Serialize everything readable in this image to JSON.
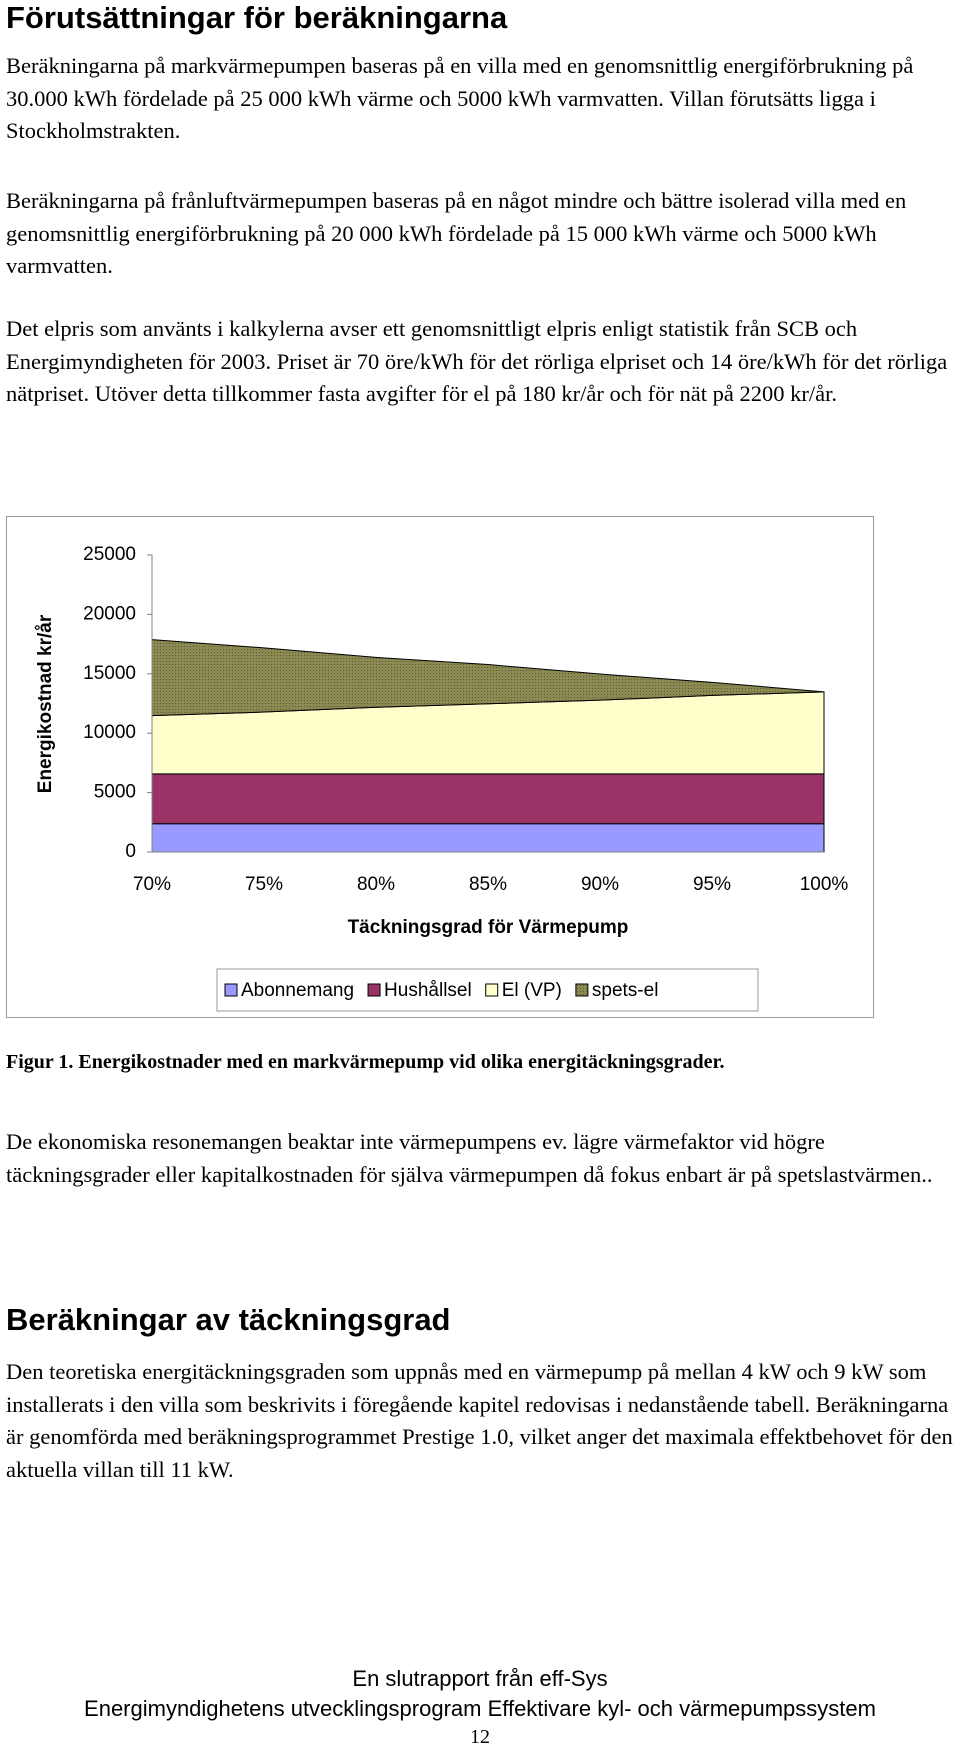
{
  "section1": {
    "heading": "Förutsättningar för beräkningarna",
    "paragraphs": [
      "Beräkningarna på markvärmepumpen baseras på en villa med en genomsnittlig energiförbrukning på 30.000 kWh fördelade på 25 000 kWh värme och 5000 kWh varmvatten. Villan förutsätts ligga i Stockholmstrakten.",
      "Beräkningarna på frånluftvärmepumpen baseras på en något mindre och bättre isolerad villa med en genomsnittlig energiförbrukning på 20 000 kWh fördelade på 15 000 kWh värme och 5000 kWh varmvatten.",
      "Det elpris som använts i kalkylerna avser ett genomsnittligt elpris enligt statistik från SCB och Energimyndigheten för 2003. Priset är 70 öre/kWh för det rörliga elpriset och 14 öre/kWh för det rörliga nätpriset. Utöver detta tillkommer fasta avgifter för el på 180 kr/år och för nät på 2200 kr/år."
    ]
  },
  "chart_data": {
    "type": "stacked-area",
    "x_label": "Täckningsgrad för Värmepump",
    "y_label": "Energikostnad kr/år",
    "categories": [
      "70%",
      "75%",
      "80%",
      "85%",
      "90%",
      "95%",
      "100%"
    ],
    "ylim": [
      0,
      25000
    ],
    "yticks": [
      0,
      5000,
      10000,
      15000,
      20000,
      25000
    ],
    "grid": false,
    "legend": "bottom",
    "series": [
      {
        "name": "Abonnemang",
        "color": "#9999ff",
        "values": [
          2380,
          2380,
          2380,
          2380,
          2380,
          2380,
          2380
        ]
      },
      {
        "name": "Hushållsel",
        "color": "#993366",
        "values": [
          4200,
          4200,
          4200,
          4200,
          4200,
          4200,
          4200
        ]
      },
      {
        "name": "El (VP)",
        "color": "#ffffcc",
        "values": [
          4900,
          5200,
          5600,
          5900,
          6200,
          6600,
          6900
        ]
      },
      {
        "name": "spets-el",
        "color": "#7a7a48",
        "values": [
          6400,
          5400,
          4200,
          3300,
          2200,
          1100,
          0
        ]
      }
    ]
  },
  "caption": "Figur 1. Energikostnader med en markvärmepump vid olika energitäckningsgrader.",
  "paragraph_after": "De ekonomiska resonemangen beaktar inte värmepumpens ev. lägre värmefaktor vid högre täckningsgrader eller kapitalkostnaden för själva värmepumpen då fokus enbart är på spetslastvärmen..",
  "section2": {
    "heading": "Beräkningar av täckningsgrad",
    "paragraph": "Den teoretiska energitäckningsgraden som uppnås med en värmepump på mellan 4 kW och 9 kW som installerats i den villa som beskrivits i föregående kapitel redovisas i nedanstående tabell. Beräkningarna är genomförda med beräkningsprogrammet Prestige 1.0, vilket anger det maximala effektbehovet för den aktuella villan till 11 kW."
  },
  "footer": {
    "line1": "En slutrapport från eff-Sys",
    "line2": "Energimyndighetens utvecklingsprogram Effektivare kyl- och värmepumpssystem",
    "page": "12"
  }
}
